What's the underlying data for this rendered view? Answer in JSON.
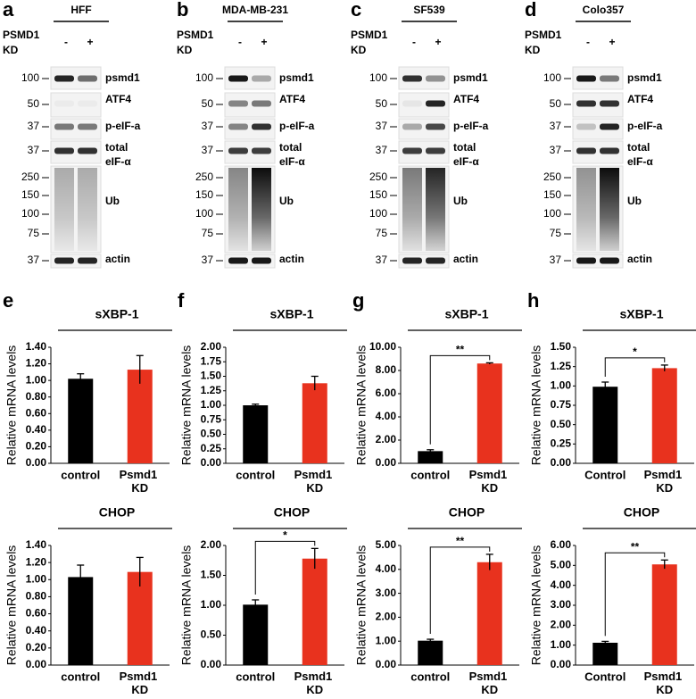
{
  "blots": [
    {
      "label": "a",
      "title": "HFF",
      "condition": "PSMD1 KD",
      "lanes": [
        "-",
        "+"
      ],
      "markers": [
        100,
        50,
        37,
        37,
        250,
        150,
        100,
        75,
        37
      ],
      "bands": [
        "psmd1",
        "ATF4",
        "p-eIF-a",
        "total eIF-α",
        "Ub",
        "actin"
      ]
    },
    {
      "label": "b",
      "title": "MDA-MB-231",
      "condition": "PSMD1 KD",
      "lanes": [
        "-",
        "+"
      ],
      "markers": [
        100,
        50,
        37,
        37,
        250,
        150,
        100,
        75,
        37
      ],
      "bands": [
        "psmd1",
        "ATF4",
        "p-eIF-a",
        "total eIF-α",
        "Ub",
        "actin"
      ]
    },
    {
      "label": "c",
      "title": "SF539",
      "condition": "PSMD1 KD",
      "lanes": [
        "-",
        "+"
      ],
      "markers": [
        100,
        50,
        37,
        37,
        250,
        150,
        100,
        75,
        37
      ],
      "bands": [
        "psmd1",
        "ATF4",
        "p-eIF-a",
        "total eIF-α",
        "Ub",
        "actin"
      ]
    },
    {
      "label": "d",
      "title": "Colo357",
      "condition": "PSMD1 KD",
      "lanes": [
        "-",
        "+"
      ],
      "markers": [
        100,
        50,
        37,
        37,
        250,
        150,
        100,
        75,
        37
      ],
      "bands": [
        "psmd1",
        "ATF4",
        "p-eIF-a",
        "total eIF-α",
        "Ub",
        "actin"
      ]
    }
  ],
  "chart_data": [
    {
      "type": "bar",
      "label": "e",
      "title": "sXBP-1",
      "ylabel": "Relative mRNA levels",
      "categories": [
        "control",
        "Psmd1 KD"
      ],
      "values": [
        1.02,
        1.13
      ],
      "errors": [
        0.06,
        0.17
      ],
      "colors": [
        "#000000",
        "#e8321e"
      ],
      "ylim": [
        0,
        1.4
      ],
      "yticks": [
        {
          "value": 0,
          "label": "0.00"
        },
        {
          "value": 0.2,
          "label": "0.20"
        },
        {
          "value": 0.4,
          "label": "0.40"
        },
        {
          "value": 0.6,
          "label": "0.60"
        },
        {
          "value": 0.8,
          "label": "0.80"
        },
        {
          "value": 1,
          "label": "1.00"
        },
        {
          "value": 1.2,
          "label": "1.20"
        },
        {
          "value": 1.4,
          "label": "1.40"
        }
      ]
    },
    {
      "type": "bar",
      "label": "f",
      "title": "sXBP-1",
      "ylabel": "Relative mRNA levels",
      "categories": [
        "control",
        "Psmd1 KD"
      ],
      "values": [
        1.0,
        1.38
      ],
      "errors": [
        0.02,
        0.12
      ],
      "colors": [
        "#000000",
        "#e8321e"
      ],
      "ylim": [
        0,
        2
      ],
      "yticks": [
        {
          "value": 0,
          "label": "0.00"
        },
        {
          "value": 0.25,
          "label": "0.25"
        },
        {
          "value": 0.5,
          "label": "0.50"
        },
        {
          "value": 0.75,
          "label": "0.75"
        },
        {
          "value": 1,
          "label": "1.00"
        },
        {
          "value": 1.25,
          "label": "1.25"
        },
        {
          "value": 1.5,
          "label": "1.50"
        },
        {
          "value": 1.75,
          "label": "1.75"
        },
        {
          "value": 2,
          "label": "2.00"
        }
      ]
    },
    {
      "type": "bar",
      "label": "g",
      "title": "sXBP-1",
      "ylabel": "Relative mRNA levels",
      "categories": [
        "control",
        "Psmd1 KD"
      ],
      "values": [
        1.05,
        8.6
      ],
      "errors": [
        0.12,
        0.06
      ],
      "colors": [
        "#000000",
        "#e8321e"
      ],
      "ylim": [
        0,
        10
      ],
      "significance": "**",
      "yticks": [
        {
          "value": 0,
          "label": "0.00"
        },
        {
          "value": 2,
          "label": "2.00"
        },
        {
          "value": 4,
          "label": "4.00"
        },
        {
          "value": 6,
          "label": "6.00"
        },
        {
          "value": 8,
          "label": "8.00"
        },
        {
          "value": 10,
          "label": "10.00"
        }
      ]
    },
    {
      "type": "bar",
      "label": "h",
      "title": "sXBP-1",
      "ylabel": "Relative mRNA levels",
      "categories": [
        "Control",
        "Psmd1 KD"
      ],
      "values": [
        0.99,
        1.23
      ],
      "errors": [
        0.06,
        0.04
      ],
      "colors": [
        "#000000",
        "#e8321e"
      ],
      "ylim": [
        0,
        1.5
      ],
      "significance": "*",
      "yticks": [
        {
          "value": 0,
          "label": "0.00"
        },
        {
          "value": 0.25,
          "label": "0.25"
        },
        {
          "value": 0.5,
          "label": "0.50"
        },
        {
          "value": 0.75,
          "label": "0.75"
        },
        {
          "value": 1,
          "label": "1.00"
        },
        {
          "value": 1.25,
          "label": "1.25"
        },
        {
          "value": 1.5,
          "label": "1.50"
        }
      ]
    },
    {
      "type": "bar",
      "title": "CHOP",
      "ylabel": "Relative mRNA levels",
      "categories": [
        "control",
        "Psmd1 KD"
      ],
      "values": [
        1.03,
        1.09
      ],
      "errors": [
        0.14,
        0.17
      ],
      "colors": [
        "#000000",
        "#e8321e"
      ],
      "ylim": [
        0,
        1.4
      ],
      "yticks": [
        {
          "value": 0,
          "label": "0.00"
        },
        {
          "value": 0.2,
          "label": "0.20"
        },
        {
          "value": 0.4,
          "label": "0.40"
        },
        {
          "value": 0.6,
          "label": "0.60"
        },
        {
          "value": 0.8,
          "label": "0.80"
        },
        {
          "value": 1,
          "label": "1.00"
        },
        {
          "value": 1.2,
          "label": "1.20"
        },
        {
          "value": 1.4,
          "label": "1.40"
        }
      ]
    },
    {
      "type": "bar",
      "title": "CHOP",
      "ylabel": "Relative mRNA levels",
      "categories": [
        "control",
        "Psmd1 KD"
      ],
      "values": [
        1.01,
        1.78
      ],
      "errors": [
        0.08,
        0.17
      ],
      "colors": [
        "#000000",
        "#e8321e"
      ],
      "ylim": [
        0,
        2
      ],
      "significance": "*",
      "yticks": [
        {
          "value": 0,
          "label": "0.00"
        },
        {
          "value": 0.5,
          "label": "0.50"
        },
        {
          "value": 1,
          "label": "1.00"
        },
        {
          "value": 1.5,
          "label": "1.50"
        },
        {
          "value": 2,
          "label": "2.00"
        }
      ]
    },
    {
      "type": "bar",
      "title": "CHOP",
      "ylabel": "Relative mRNA levels",
      "categories": [
        "control",
        "Psmd1 KD"
      ],
      "values": [
        1.02,
        4.3
      ],
      "errors": [
        0.06,
        0.33
      ],
      "colors": [
        "#000000",
        "#e8321e"
      ],
      "ylim": [
        0,
        5
      ],
      "significance": "**",
      "yticks": [
        {
          "value": 0,
          "label": "0.00"
        },
        {
          "value": 1,
          "label": "1.00"
        },
        {
          "value": 2,
          "label": "2.00"
        },
        {
          "value": 3,
          "label": "3.00"
        },
        {
          "value": 4,
          "label": "4.00"
        },
        {
          "value": 5,
          "label": "5.00"
        }
      ]
    },
    {
      "type": "bar",
      "title": "CHOP",
      "ylabel": "Relative mRNA levels",
      "categories": [
        "Control",
        "Psmd1 KD"
      ],
      "values": [
        1.12,
        5.05
      ],
      "errors": [
        0.07,
        0.22
      ],
      "colors": [
        "#000000",
        "#e8321e"
      ],
      "ylim": [
        0,
        6
      ],
      "significance": "**",
      "yticks": [
        {
          "value": 0,
          "label": "0.00"
        },
        {
          "value": 1,
          "label": "1.00"
        },
        {
          "value": 2,
          "label": "2.00"
        },
        {
          "value": 3,
          "label": "3.00"
        },
        {
          "value": 4,
          "label": "4.00"
        },
        {
          "value": 5,
          "label": "5.00"
        },
        {
          "value": 6,
          "label": "6.00"
        }
      ]
    }
  ]
}
